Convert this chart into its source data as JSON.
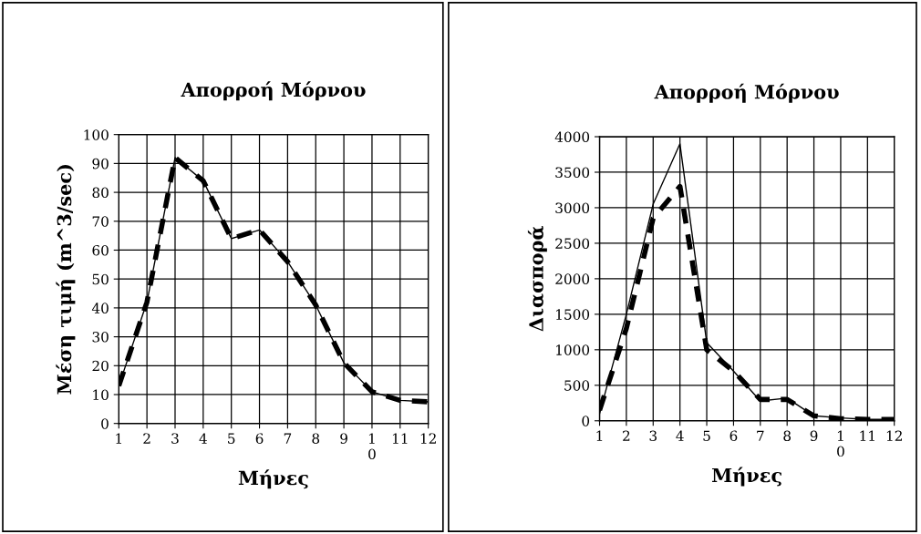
{
  "chart_data": [
    {
      "type": "line",
      "title": "Απορροή Μόρνου",
      "xlabel": "Μήνες",
      "ylabel": "Μέση τιμή (m^3/sec)",
      "categories": [
        "1",
        "2",
        "3",
        "4",
        "5",
        "6",
        "7",
        "8",
        "9",
        "1\n0",
        "11",
        "12"
      ],
      "series": [
        {
          "color": "#000000",
          "line_style": "dashed",
          "values": [
            13,
            42,
            92,
            84,
            64,
            67,
            56,
            41,
            21,
            11,
            8,
            7.5
          ]
        },
        {
          "color": "#000000",
          "line_style": "solid",
          "values": [
            13,
            42,
            92,
            84,
            64,
            67,
            56,
            41,
            21,
            11,
            8,
            7.5
          ]
        }
      ],
      "ylim": [
        0,
        100
      ],
      "yticks": [
        0,
        10,
        20,
        30,
        40,
        50,
        60,
        70,
        80,
        90,
        100
      ],
      "grid": true
    },
    {
      "type": "line",
      "title": "Απορροή Μόρνου",
      "xlabel": "Μήνες",
      "ylabel": "Διασπορά",
      "categories": [
        "1",
        "2",
        "3",
        "4",
        "5",
        "6",
        "7",
        "8",
        "9",
        "1\n0",
        "11",
        "12"
      ],
      "series": [
        {
          "color": "#000000",
          "line_style": "dashed",
          "values": [
            150,
            1300,
            2850,
            3300,
            1000,
            700,
            300,
            300,
            70,
            30,
            20,
            20
          ]
        },
        {
          "color": "#000000",
          "line_style": "solid",
          "values": [
            100,
            1500,
            3050,
            3900,
            1100,
            700,
            280,
            320,
            70,
            40,
            20,
            20
          ]
        }
      ],
      "ylim": [
        0,
        4000
      ],
      "yticks": [
        0,
        500,
        1000,
        1500,
        2000,
        2500,
        3000,
        3500,
        4000
      ],
      "grid": true
    }
  ]
}
